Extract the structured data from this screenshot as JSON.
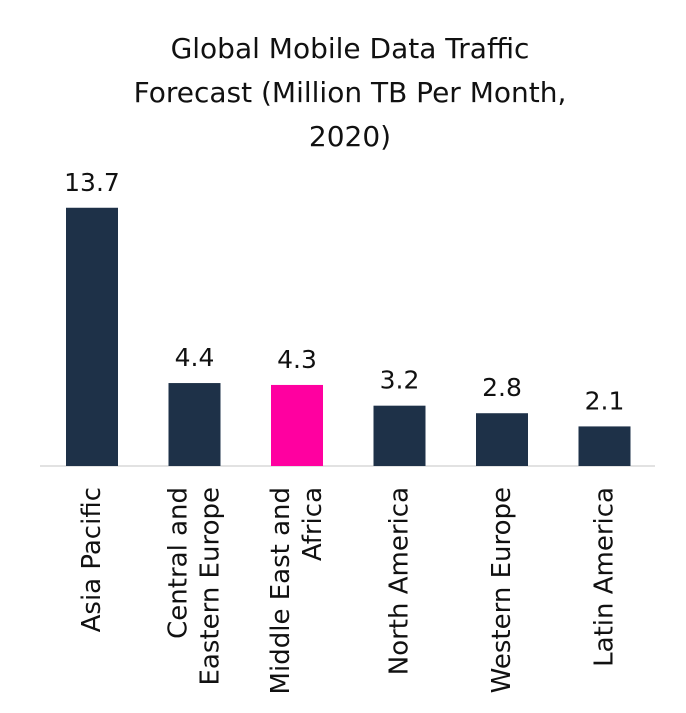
{
  "chart_data": {
    "type": "bar",
    "title": "Global Mobile Data Traffic Forecast (Million TB Per Month, 2020)",
    "categories": [
      "Asia Pacific",
      "Central and Eastern Europe",
      "Middle East and Africa",
      "North America",
      "Western Europe",
      "Latin America"
    ],
    "values": [
      13.7,
      4.4,
      4.3,
      3.2,
      2.8,
      2.1
    ],
    "colors": [
      "#1e3148",
      "#1e3148",
      "#ff00a0",
      "#1e3148",
      "#1e3148",
      "#1e3148"
    ]
  }
}
